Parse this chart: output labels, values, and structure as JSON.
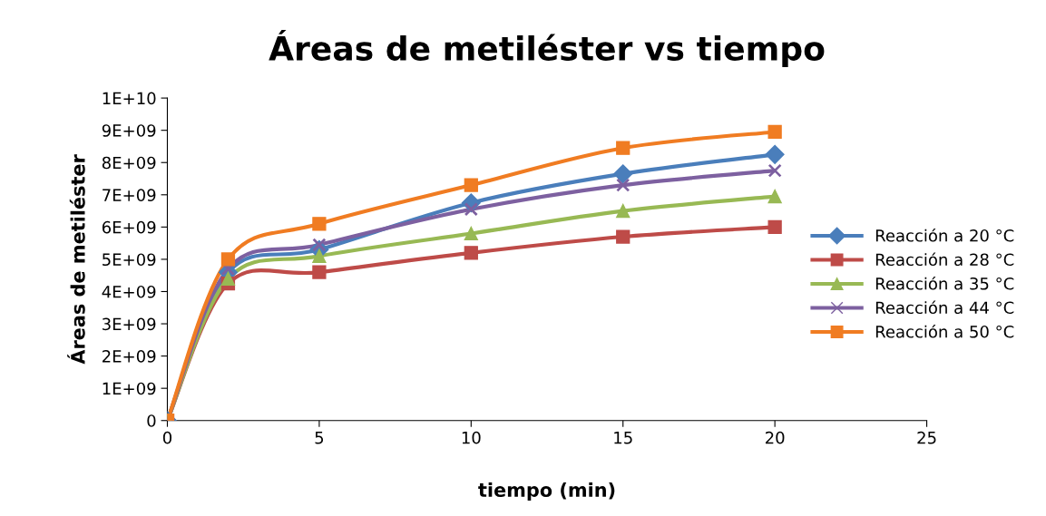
{
  "chart_data": {
    "type": "line",
    "title": "Áreas de metiléster vs tiempo",
    "xlabel": "tiempo (min)",
    "ylabel": "Áreas de metiléster",
    "x": [
      0,
      2,
      5,
      10,
      15,
      20
    ],
    "series": [
      {
        "name": "Reacción a 20 °C",
        "color": "#4a7ebb",
        "marker": "diamond",
        "values": [
          0,
          4600000000,
          5300000000,
          6750000000,
          7650000000,
          8250000000
        ]
      },
      {
        "name": "Reacción a 28 °C",
        "color": "#be4b48",
        "marker": "square",
        "values": [
          0,
          4250000000,
          4600000000,
          5200000000,
          5700000000,
          6000000000
        ]
      },
      {
        "name": "Reacción a 35 °C",
        "color": "#98b954",
        "marker": "triangle",
        "values": [
          0,
          4400000000,
          5100000000,
          5800000000,
          6500000000,
          6950000000
        ]
      },
      {
        "name": "Reacción a 44 °C",
        "color": "#7d60a0",
        "marker": "cross",
        "values": [
          0,
          4700000000,
          5450000000,
          6550000000,
          7300000000,
          7750000000
        ]
      },
      {
        "name": "Reacción a 50 °C",
        "color": "#f07c22",
        "marker": "square",
        "values": [
          0,
          5000000000,
          6100000000,
          7300000000,
          8450000000,
          8950000000
        ]
      }
    ],
    "xlim": [
      0,
      25
    ],
    "xticks": [
      0,
      5,
      10,
      15,
      20,
      25
    ],
    "ylim": [
      0,
      10000000000
    ],
    "yticks": [
      {
        "value": 0,
        "label": "0"
      },
      {
        "value": 1000000000,
        "label": "1E+09"
      },
      {
        "value": 2000000000,
        "label": "2E+09"
      },
      {
        "value": 3000000000,
        "label": "3E+09"
      },
      {
        "value": 4000000000,
        "label": "4E+09"
      },
      {
        "value": 5000000000,
        "label": "5E+09"
      },
      {
        "value": 6000000000,
        "label": "6E+09"
      },
      {
        "value": 7000000000,
        "label": "7E+09"
      },
      {
        "value": 8000000000,
        "label": "8E+09"
      },
      {
        "value": 9000000000,
        "label": "9E+09"
      },
      {
        "value": 10000000000,
        "label": "1E+10"
      }
    ],
    "grid": false,
    "legend": "right",
    "line_style": "solid"
  }
}
